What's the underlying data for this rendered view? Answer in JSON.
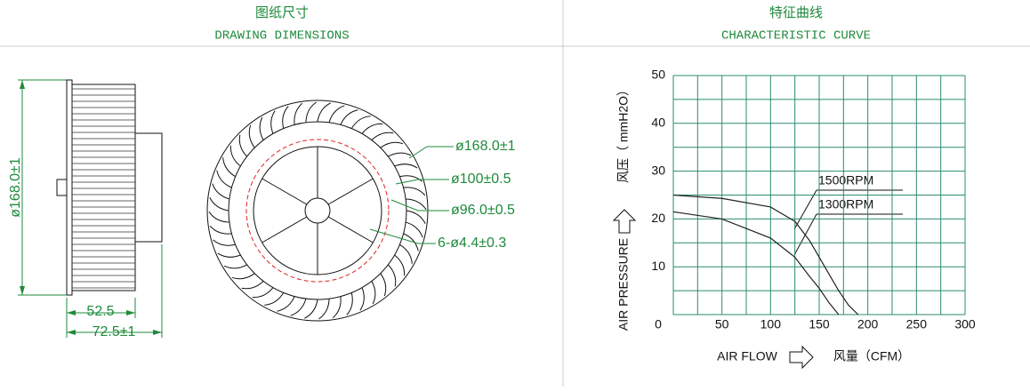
{
  "header": {
    "left_title_cn": "图纸尺寸",
    "left_title_en": "DRAWING DIMENSIONS",
    "right_title_cn": "特征曲线",
    "right_title_en": "CHARACTERISTIC CURVE"
  },
  "drawing": {
    "height_dim": "ø168.0±1",
    "depth_dim_1": "52.5",
    "depth_dim_2": "72.5±1",
    "outer_dia": "ø168.0±1",
    "dia_100": "ø100±0.5",
    "dia_96": "ø96.0±0.5",
    "holes": "6-ø4.4±0.3"
  },
  "chart_data": {
    "type": "line",
    "xlabel": "AIR FLOW",
    "xlabel_unit": "风量（CFM）",
    "ylabel": "AIR PRESSURE",
    "ylabel_unit": "风压（ mmH2O）",
    "x": [
      0,
      50,
      100,
      125,
      140,
      150,
      160,
      170,
      180,
      190
    ],
    "series": [
      {
        "name": "1500RPM",
        "color": "#222222",
        "values": [
          25,
          24.3,
          22.5,
          19.5,
          15.5,
          12,
          8.5,
          5,
          2,
          0
        ]
      },
      {
        "name": "1300RPM",
        "color": "#222222",
        "values": [
          21.5,
          20,
          16,
          12,
          8,
          5.5,
          2.5,
          0,
          null,
          null
        ]
      }
    ],
    "xlim": [
      0,
      300
    ],
    "ylim": [
      0,
      50
    ],
    "xticks": [
      0,
      50,
      100,
      150,
      200,
      250,
      300
    ],
    "yticks": [
      0,
      10,
      20,
      30,
      40,
      50
    ],
    "grid": true,
    "grid_color": "#2a8c72"
  }
}
